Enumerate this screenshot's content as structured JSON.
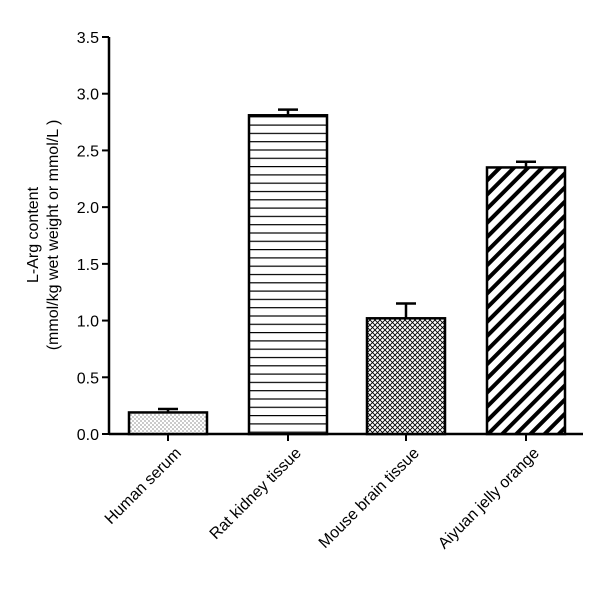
{
  "chart_data": {
    "type": "bar",
    "title": "",
    "xlabel": "",
    "ylabel_lines": [
      "L-Arg content",
      "(mmol/kg wet weight or mmol/L )"
    ],
    "categories": [
      "Human serum",
      "Rat kidney tissue",
      "Mouse brain tissue",
      "Aiyuan jelly orange"
    ],
    "values": [
      0.19,
      2.81,
      1.02,
      2.35
    ],
    "errors": [
      0.03,
      0.05,
      0.13,
      0.05
    ],
    "patterns": [
      "dots",
      "horizontal-lines",
      "crosshatch",
      "diagonal-stripes"
    ],
    "ylim": [
      0,
      3.5
    ],
    "yticks": [
      "0.0",
      "0.5",
      "1.0",
      "1.5",
      "2.0",
      "2.5",
      "3.0",
      "3.5"
    ],
    "grid": false,
    "legend": "none"
  },
  "colors": {
    "bar_edge": "#000000",
    "bar_fill": "#ffffff",
    "pattern_ink": "#000000"
  }
}
